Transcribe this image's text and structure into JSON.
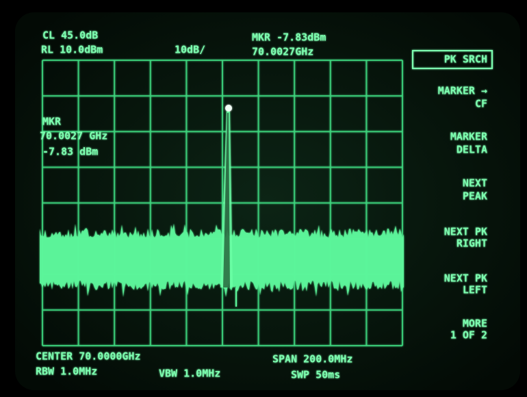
{
  "header": {
    "calibration": "CL 45.0dB",
    "reference_level": "RL 10.0dBm",
    "scale": "10dB/",
    "marker_amplitude": "MKR -7.83dBm",
    "marker_frequency": "70.0027GHz"
  },
  "marker_readout": {
    "label": "MKR",
    "frequency": "70.0027 GHz",
    "amplitude": "-7.83 dBm"
  },
  "softkeys": [
    [
      "PK SRCH"
    ],
    [
      "MARKER →",
      "CF"
    ],
    [
      "MARKER",
      "DELTA"
    ],
    [
      "NEXT",
      "PEAK"
    ],
    [
      "NEXT PK",
      "RIGHT"
    ],
    [
      "NEXT PK",
      "LEFT"
    ],
    [
      "MORE",
      "1 OF 2"
    ]
  ],
  "footer": {
    "center": "CENTER 70.0000GHz",
    "rbw": "RBW 1.0MHz",
    "vbw": "VBW 1.0MHz",
    "span": "SPAN 200.0MHz",
    "sweep": "SWP 50ms"
  }
}
